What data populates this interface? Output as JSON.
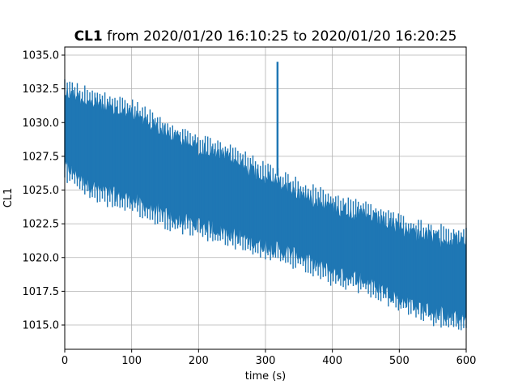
{
  "chart_data": {
    "type": "line",
    "title_bold": "CL1",
    "title_rest": " from 2020/01/20 16:10:25 to 2020/01/20 16:20:25",
    "xlabel": "time (s)",
    "ylabel": "CL1",
    "xlim": [
      0,
      600
    ],
    "ylim": [
      1013.2,
      1035.6
    ],
    "xticks": [
      0,
      100,
      200,
      300,
      400,
      500,
      600
    ],
    "xtick_labels": [
      "0",
      "100",
      "200",
      "300",
      "400",
      "500",
      "600"
    ],
    "yticks": [
      1015.0,
      1017.5,
      1020.0,
      1022.5,
      1025.0,
      1027.5,
      1030.0,
      1032.5,
      1035.0
    ],
    "ytick_labels": [
      "1015.0",
      "1017.5",
      "1020.0",
      "1022.5",
      "1025.0",
      "1027.5",
      "1030.0",
      "1032.5",
      "1035.0"
    ],
    "grid": true,
    "series": [
      {
        "color": "#1f77b4",
        "envelope": {
          "x": [
            0,
            50,
            100,
            150,
            200,
            250,
            300,
            350,
            400,
            450,
            500,
            550,
            600
          ],
          "upper": [
            1032.8,
            1031.8,
            1031.2,
            1029.8,
            1028.6,
            1027.8,
            1026.5,
            1025.3,
            1024.3,
            1023.6,
            1022.7,
            1022.0,
            1021.7
          ],
          "lower": [
            1026.2,
            1024.5,
            1023.8,
            1022.6,
            1022.0,
            1021.2,
            1020.4,
            1019.6,
            1018.4,
            1017.8,
            1016.5,
            1015.5,
            1014.8
          ]
        },
        "spike": {
          "x": 318,
          "y": 1034.5
        }
      }
    ]
  }
}
